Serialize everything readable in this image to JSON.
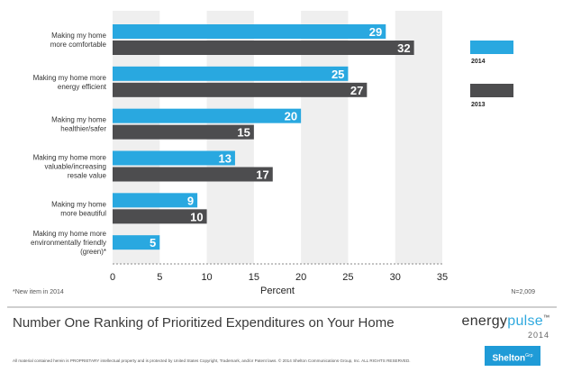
{
  "chart_data": {
    "type": "bar",
    "orientation": "horizontal",
    "categories": [
      [
        "Making my home",
        "more comfortable"
      ],
      [
        "Making my home more",
        "energy efficient"
      ],
      [
        "Making my home",
        "healthier/safer"
      ],
      [
        "Making my home more",
        "valuable/increasing",
        "resale value"
      ],
      [
        "Making my home",
        "more beautiful"
      ],
      [
        "Making my home more",
        "environmentally friendly",
        "(green)*"
      ]
    ],
    "series": [
      {
        "name": "2014",
        "color": "#29a8e0",
        "values": [
          29,
          25,
          20,
          13,
          9,
          5
        ]
      },
      {
        "name": "2013",
        "color": "#4d4d4f",
        "values": [
          32,
          27,
          15,
          17,
          10,
          null
        ]
      }
    ],
    "xlabel": "Percent",
    "ylabel": "",
    "xlim": [
      0,
      35
    ],
    "xticks": [
      0,
      5,
      10,
      15,
      20,
      25,
      30,
      35
    ],
    "grid": "alternating vertical bands",
    "legend_position": "right"
  },
  "notes": {
    "new_item": "*New item in 2014",
    "sample_size": "N=2,009"
  },
  "footer": {
    "title": "Number One Ranking of Prioritized Expenditures on Your Home",
    "brand_prefix": "energy",
    "brand_suffix": "pulse",
    "brand_tm": "™",
    "brand_year": "2014",
    "disclaimer": "All material contained herein is PROPRIETARY intellectual property and is protected by United States Copyright, Trademark, and/or Patent laws. © 2014 Shelton Communications Group, Inc. ALL RIGHTS RESERVED.",
    "logo_text": "Shelton",
    "logo_sup": "Grp"
  }
}
